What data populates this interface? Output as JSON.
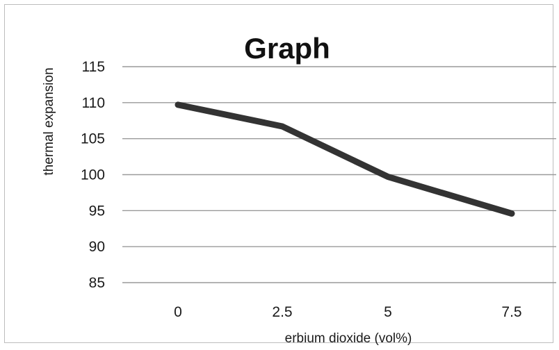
{
  "chart_data": {
    "type": "line",
    "title": "Graph",
    "xlabel": "erbium dioxide (vol%)",
    "ylabel": "thermal expansion",
    "categories": [
      "0",
      "2.5",
      "5",
      "7.5"
    ],
    "yticks": [
      "85",
      "90",
      "95",
      "100",
      "105",
      "110",
      "115"
    ],
    "ylim": [
      85,
      115
    ],
    "grid": true,
    "series": [
      {
        "values": [
          109.7,
          106.7,
          99.7,
          94.6
        ],
        "color": "#333333"
      }
    ]
  }
}
